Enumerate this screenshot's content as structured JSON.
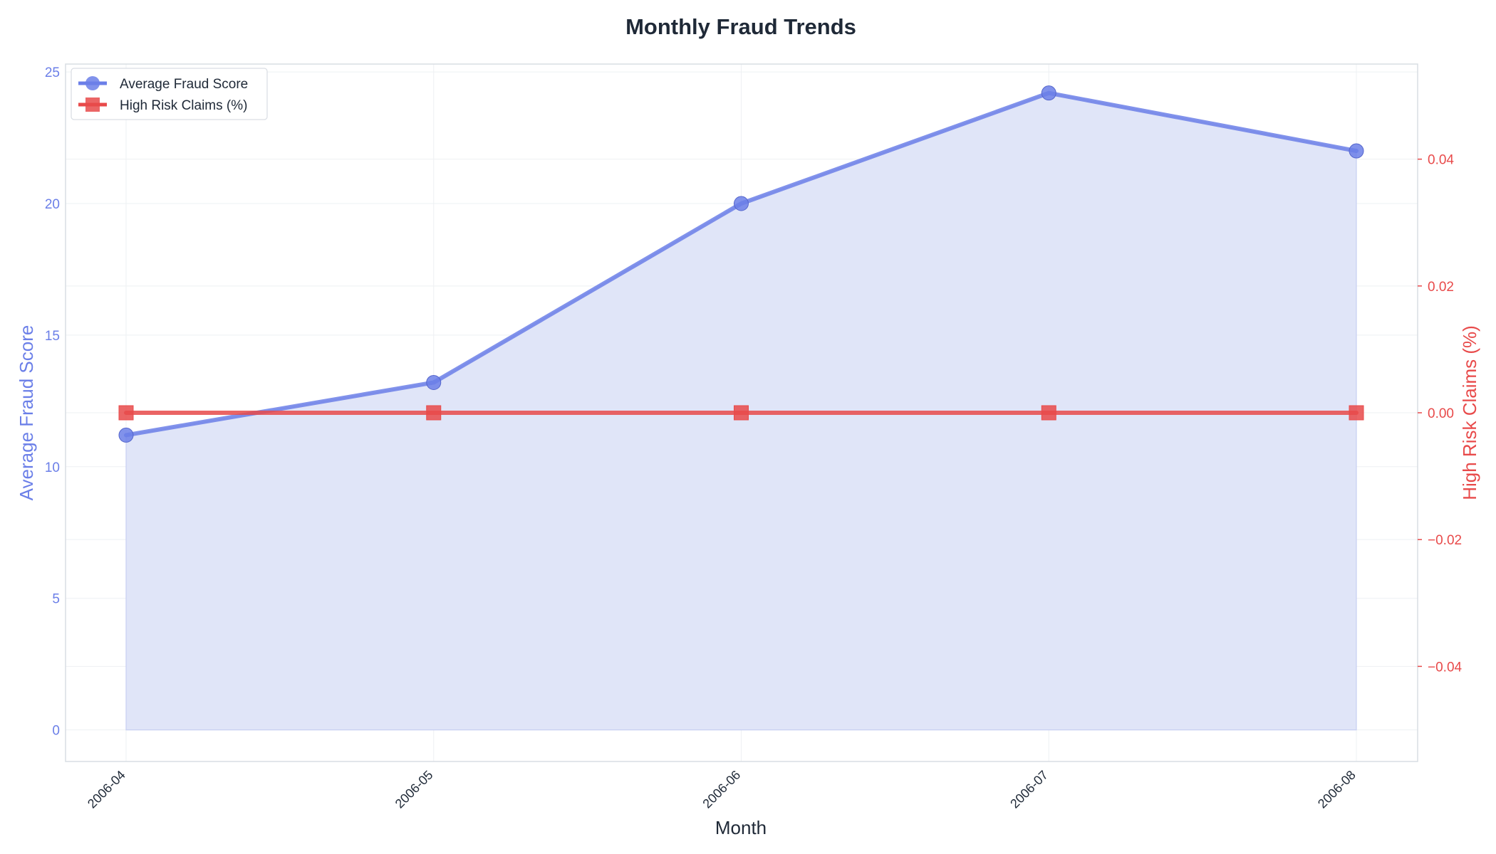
{
  "chart_data": {
    "type": "line",
    "title": "Monthly Fraud Trends",
    "xlabel": "Month",
    "ylabel_left": "Average Fraud Score",
    "ylabel_right": "High Risk Claims (%)",
    "categories": [
      "2006-04",
      "2006-05",
      "2006-06",
      "2006-07",
      "2006-08"
    ],
    "y_left_range": [
      -1.2,
      25.3
    ],
    "y_left_ticks": [
      0,
      5,
      10,
      15,
      20,
      25
    ],
    "y_right_range": [
      -0.055,
      0.055
    ],
    "y_right_ticks": [
      0.04,
      0.02,
      0.0,
      -0.02,
      -0.04
    ],
    "y_right_tick_labels": [
      "0.04",
      "0.02",
      "0.00",
      "−0.02",
      "−0.04"
    ],
    "grid": true,
    "legend_position": "top-left",
    "series": [
      {
        "name": "Average Fraud Score",
        "axis": "left",
        "values": [
          11.2,
          13.2,
          20.0,
          24.2,
          22.0
        ],
        "color": "#6b7fe8",
        "fill": "#e0e5f8",
        "marker": "circle",
        "area": true
      },
      {
        "name": "High Risk Claims (%)",
        "axis": "right",
        "values": [
          0.0,
          0.0,
          0.0,
          0.0,
          0.0
        ],
        "color": "#e84a4a",
        "marker": "square",
        "area": false
      }
    ],
    "colors": {
      "left_axis": "#6b7fe8",
      "right_axis": "#e84a4a",
      "grid": "#eef0f3",
      "frame": "#d9dde3",
      "text": "#1f2937"
    }
  }
}
